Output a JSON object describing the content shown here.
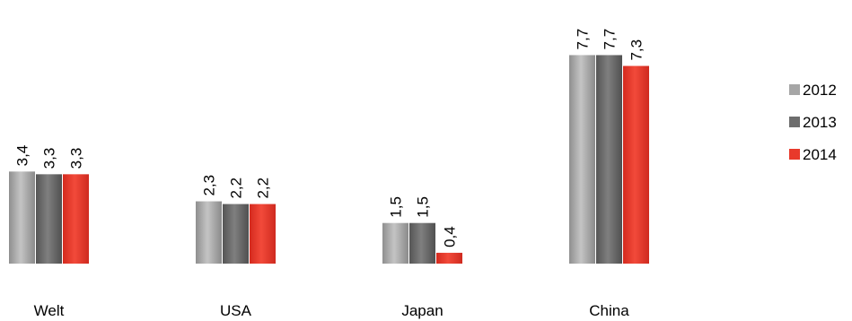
{
  "chart_data": {
    "type": "bar",
    "categories": [
      "Welt",
      "USA",
      "Japan",
      "China"
    ],
    "series": [
      {
        "name": "2012",
        "values": [
          3.4,
          2.3,
          1.5,
          7.7
        ],
        "labels": [
          "3,4",
          "2,3",
          "1,5",
          "7,7"
        ],
        "color": "#a6a6a6"
      },
      {
        "name": "2013",
        "values": [
          3.3,
          2.2,
          1.5,
          7.7
        ],
        "labels": [
          "3,3",
          "2,2",
          "1,5",
          "7,7"
        ],
        "color": "#6d6d6d"
      },
      {
        "name": "2014",
        "values": [
          3.3,
          2.2,
          0.4,
          7.3
        ],
        "labels": [
          "3,3",
          "2,2",
          "0,4",
          "7,3"
        ],
        "color": "#e8392b"
      }
    ],
    "ylim": [
      0,
      8
    ],
    "grid": false,
    "legend_position": "right",
    "title": "",
    "xlabel": "",
    "ylabel": ""
  }
}
